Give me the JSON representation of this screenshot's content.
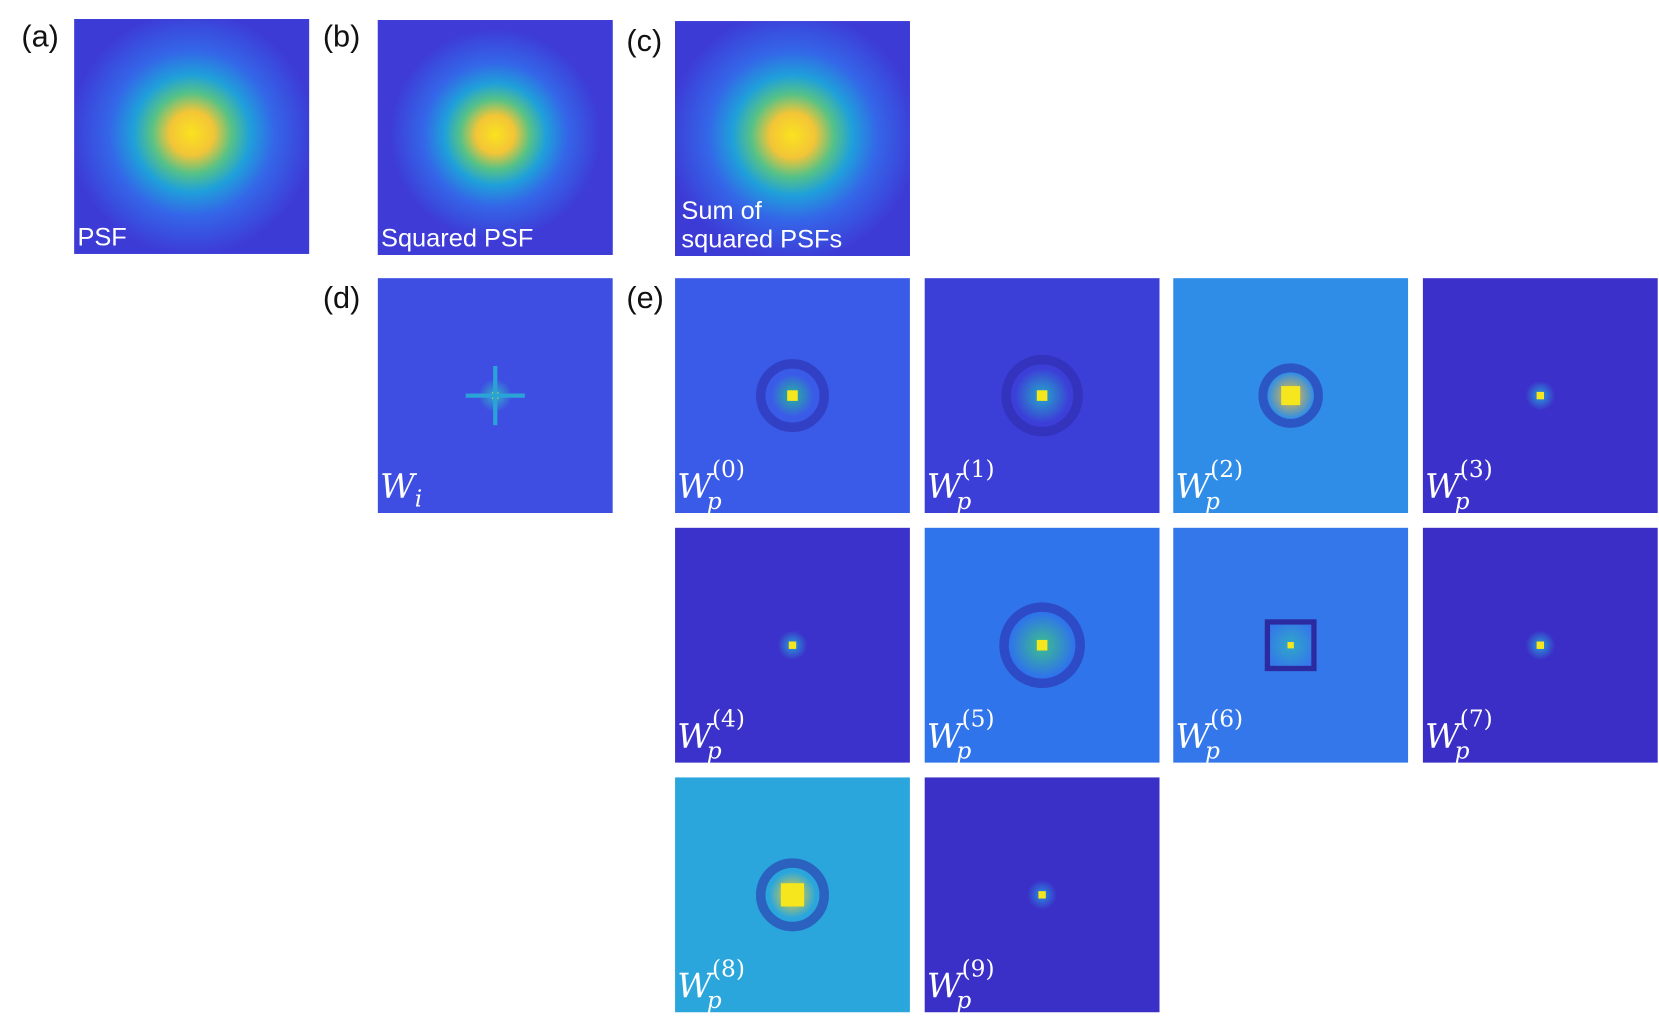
{
  "panels": [
    {
      "label": "(a)",
      "caption": [
        "PSF"
      ]
    },
    {
      "label": "(b)",
      "caption": [
        "Squared PSF"
      ]
    },
    {
      "label": "(c)",
      "caption": [
        "Sum of",
        "squared PSFs"
      ]
    }
  ],
  "intensity_weights": {
    "label": "(d)",
    "caption": {
      "base": "W",
      "sub": "i"
    }
  },
  "pattern_weights": {
    "label": "(e)",
    "maps": [
      {
        "base": "W",
        "sub": "p",
        "sup": "(0)"
      },
      {
        "base": "W",
        "sub": "p",
        "sup": "(1)"
      },
      {
        "base": "W",
        "sub": "p",
        "sup": "(2)"
      },
      {
        "base": "W",
        "sub": "p",
        "sup": "(3)"
      },
      {
        "base": "W",
        "sub": "p",
        "sup": "(4)"
      },
      {
        "base": "W",
        "sub": "p",
        "sup": "(5)"
      },
      {
        "base": "W",
        "sub": "p",
        "sup": "(6)"
      },
      {
        "base": "W",
        "sub": "p",
        "sup": "(7)"
      },
      {
        "base": "W",
        "sub": "p",
        "sup": "(8)"
      },
      {
        "base": "W",
        "sub": "p",
        "sup": "(9)"
      }
    ]
  }
}
